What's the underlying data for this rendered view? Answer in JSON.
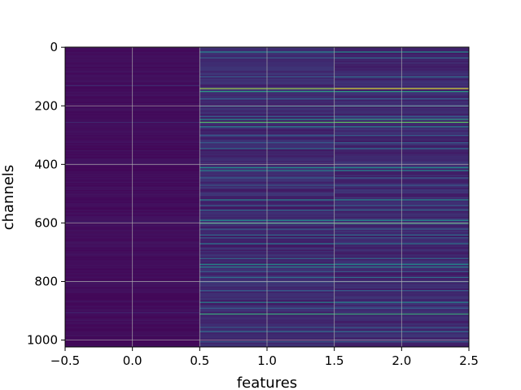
{
  "chart_data": {
    "type": "heatmap",
    "title": "",
    "xlabel": "features",
    "ylabel": "channels",
    "xlim": [
      -0.5,
      2.5
    ],
    "ylim": [
      1023.5,
      -0.5
    ],
    "x_ticks": [
      "−0.5",
      "0.0",
      "0.5",
      "1.0",
      "1.5",
      "2.0",
      "2.5"
    ],
    "y_ticks": [
      "0",
      "200",
      "400",
      "600",
      "800",
      "1000"
    ],
    "grid": true,
    "colormap": "viridis",
    "n_channels": 1024,
    "columns": [
      {
        "x": 0,
        "baseline": 0.04,
        "bright_rows": [
          [
            130,
            0.12
          ],
          [
            255,
            0.12
          ],
          [
            595,
            0.1
          ],
          [
            905,
            0.1
          ]
        ]
      },
      {
        "x": 1,
        "baseline": 0.12,
        "bright_rows": [
          [
            15,
            0.45
          ],
          [
            35,
            0.3
          ],
          [
            100,
            0.3
          ],
          [
            140,
            0.85
          ],
          [
            150,
            0.55
          ],
          [
            175,
            0.3
          ],
          [
            200,
            0.35
          ],
          [
            235,
            0.3
          ],
          [
            245,
            0.5
          ],
          [
            255,
            0.7
          ],
          [
            270,
            0.45
          ],
          [
            300,
            0.3
          ],
          [
            325,
            0.3
          ],
          [
            345,
            0.35
          ],
          [
            410,
            0.5
          ],
          [
            420,
            0.45
          ],
          [
            445,
            0.3
          ],
          [
            470,
            0.3
          ],
          [
            520,
            0.45
          ],
          [
            540,
            0.3
          ],
          [
            555,
            0.35
          ],
          [
            590,
            0.5
          ],
          [
            600,
            0.55
          ],
          [
            620,
            0.3
          ],
          [
            640,
            0.35
          ],
          [
            650,
            0.3
          ],
          [
            670,
            0.4
          ],
          [
            720,
            0.35
          ],
          [
            740,
            0.5
          ],
          [
            750,
            0.45
          ],
          [
            765,
            0.3
          ],
          [
            785,
            0.35
          ],
          [
            800,
            0.3
          ],
          [
            830,
            0.3
          ],
          [
            870,
            0.45
          ],
          [
            890,
            0.3
          ],
          [
            910,
            0.6
          ],
          [
            955,
            0.3
          ],
          [
            970,
            0.35
          ],
          [
            1005,
            0.3
          ]
        ]
      },
      {
        "x": 2,
        "baseline": 0.12,
        "bright_rows": [
          [
            15,
            0.5
          ],
          [
            35,
            0.35
          ],
          [
            100,
            0.35
          ],
          [
            140,
            0.95
          ],
          [
            150,
            0.55
          ],
          [
            175,
            0.3
          ],
          [
            200,
            0.35
          ],
          [
            235,
            0.3
          ],
          [
            245,
            0.55
          ],
          [
            255,
            0.75
          ],
          [
            270,
            0.45
          ],
          [
            300,
            0.3
          ],
          [
            325,
            0.3
          ],
          [
            345,
            0.35
          ],
          [
            410,
            0.5
          ],
          [
            420,
            0.45
          ],
          [
            445,
            0.3
          ],
          [
            470,
            0.3
          ],
          [
            520,
            0.5
          ],
          [
            540,
            0.3
          ],
          [
            555,
            0.35
          ],
          [
            590,
            0.5
          ],
          [
            600,
            0.6
          ],
          [
            620,
            0.3
          ],
          [
            640,
            0.35
          ],
          [
            650,
            0.3
          ],
          [
            670,
            0.4
          ],
          [
            720,
            0.35
          ],
          [
            740,
            0.5
          ],
          [
            750,
            0.45
          ],
          [
            765,
            0.3
          ],
          [
            785,
            0.35
          ],
          [
            800,
            0.3
          ],
          [
            830,
            0.3
          ],
          [
            870,
            0.45
          ],
          [
            890,
            0.3
          ],
          [
            910,
            0.6
          ],
          [
            955,
            0.3
          ],
          [
            970,
            0.35
          ],
          [
            1005,
            0.3
          ]
        ]
      }
    ]
  }
}
